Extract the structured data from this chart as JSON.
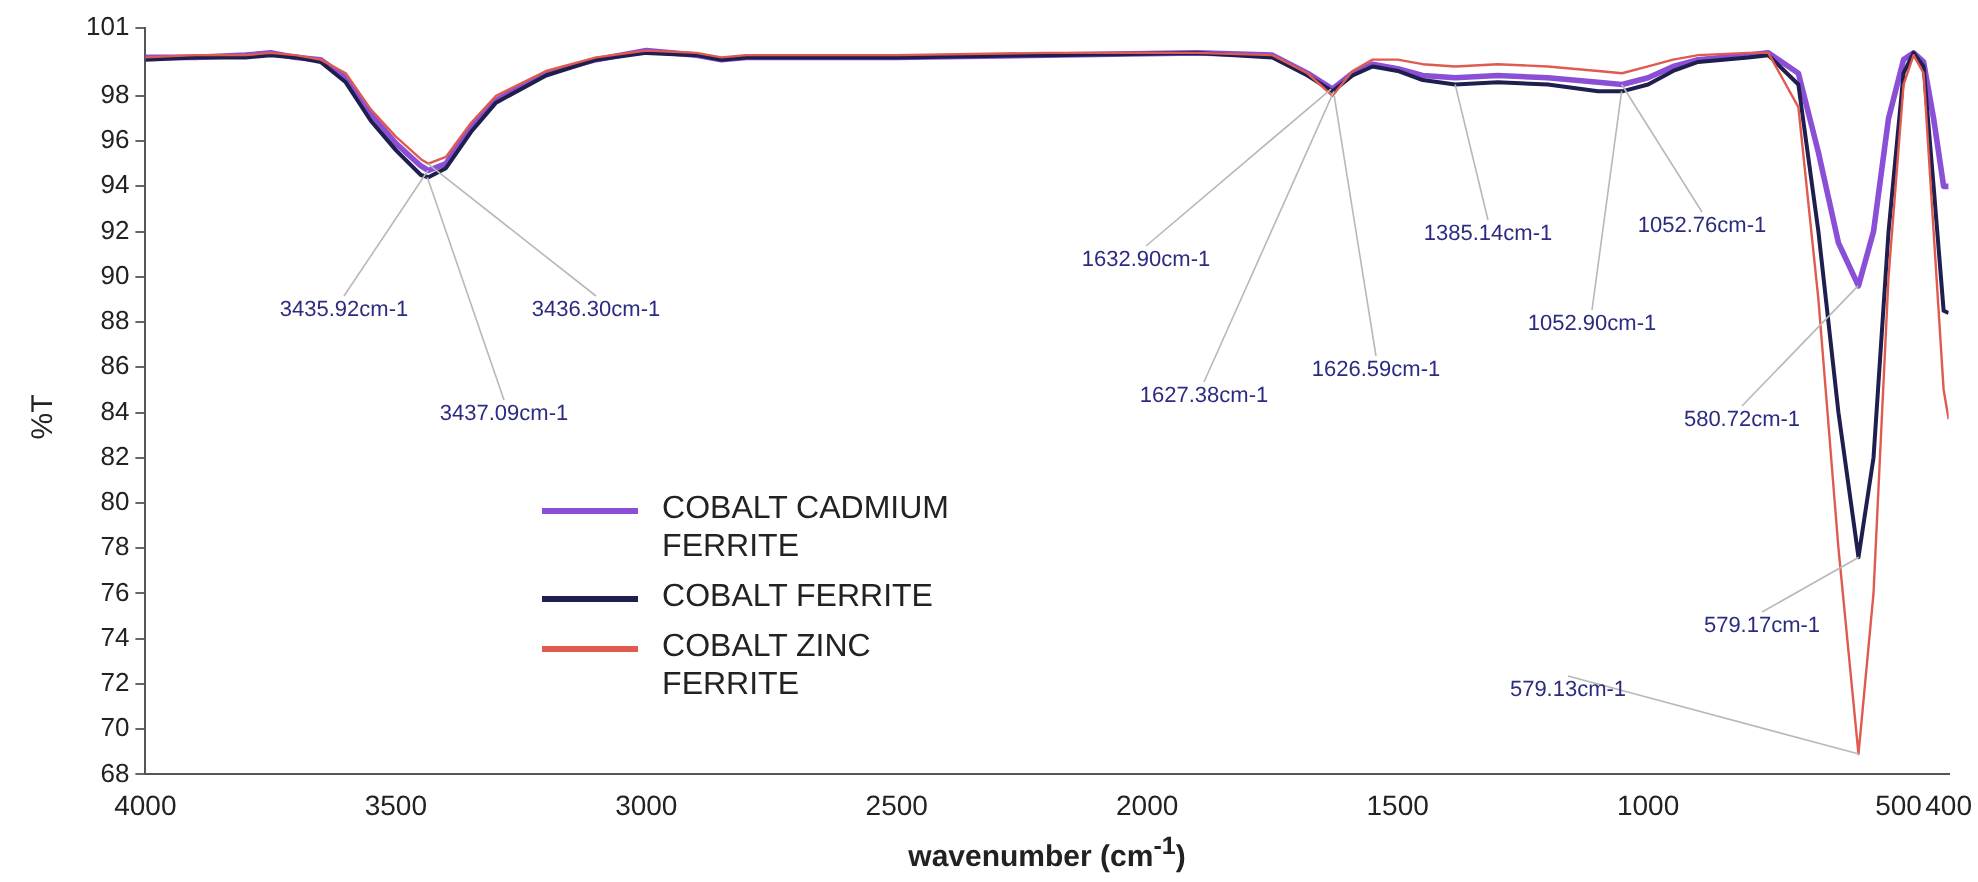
{
  "chart_data": {
    "type": "line",
    "xlabel": "wavenumber (cm$^{-1}$)",
    "ylabel": "%T",
    "x": [
      4000,
      3900,
      3800,
      3750,
      3700,
      3650,
      3600,
      3550,
      3500,
      3450,
      3435,
      3400,
      3350,
      3300,
      3200,
      3100,
      3000,
      2900,
      2850,
      2800,
      2500,
      2200,
      1900,
      1750,
      1680,
      1630,
      1590,
      1550,
      1500,
      1450,
      1385,
      1300,
      1200,
      1100,
      1052,
      1000,
      950,
      900,
      800,
      760,
      700,
      660,
      620,
      580,
      550,
      520,
      490,
      470,
      450,
      430,
      410,
      400
    ],
    "series": [
      {
        "name": "COBALT CADMIUM FERRITE",
        "color": "#8a4fd6",
        "values": [
          99.7,
          99.7,
          99.8,
          99.9,
          99.7,
          99.6,
          98.8,
          97.2,
          95.9,
          94.9,
          94.7,
          95.0,
          96.6,
          97.8,
          99.0,
          99.6,
          100.0,
          99.8,
          99.6,
          99.7,
          99.7,
          99.8,
          99.9,
          99.8,
          99.0,
          98.3,
          99.0,
          99.4,
          99.2,
          98.9,
          98.8,
          98.9,
          98.8,
          98.6,
          98.5,
          98.8,
          99.3,
          99.6,
          99.8,
          99.9,
          99.0,
          95.5,
          91.5,
          89.6,
          92.0,
          97.0,
          99.6,
          99.9,
          99.5,
          97.0,
          94.0,
          94.0
        ]
      },
      {
        "name": "COBALT FERRITE",
        "color": "#1f1f4f",
        "values": [
          99.6,
          99.7,
          99.7,
          99.8,
          99.7,
          99.5,
          98.6,
          96.9,
          95.6,
          94.5,
          94.4,
          94.8,
          96.4,
          97.7,
          98.9,
          99.6,
          99.9,
          99.8,
          99.6,
          99.7,
          99.7,
          99.8,
          99.9,
          99.7,
          98.9,
          98.2,
          98.9,
          99.3,
          99.1,
          98.7,
          98.5,
          98.6,
          98.5,
          98.2,
          98.2,
          98.5,
          99.1,
          99.5,
          99.7,
          99.8,
          98.5,
          92.0,
          84.0,
          77.6,
          82.0,
          92.0,
          99.0,
          99.9,
          99.3,
          94.0,
          88.5,
          88.4
        ]
      },
      {
        "name": "COBALT ZINC FERRITE",
        "color": "#e05a50",
        "values": [
          99.7,
          99.8,
          99.8,
          99.9,
          99.8,
          99.6,
          99.0,
          97.4,
          96.2,
          95.2,
          95.0,
          95.3,
          96.8,
          98.0,
          99.1,
          99.7,
          100.0,
          99.9,
          99.7,
          99.8,
          99.8,
          99.9,
          99.9,
          99.8,
          99.0,
          98.0,
          99.1,
          99.6,
          99.6,
          99.4,
          99.3,
          99.4,
          99.3,
          99.1,
          99.0,
          99.3,
          99.6,
          99.8,
          99.9,
          99.9,
          97.5,
          89.0,
          78.0,
          68.9,
          76.0,
          90.0,
          98.5,
          99.8,
          99.0,
          92.0,
          85.0,
          83.7
        ]
      }
    ],
    "xlim": [
      4000,
      400
    ],
    "xticks": [
      4000,
      3500,
      3000,
      2500,
      2000,
      1500,
      1000,
      500,
      400
    ],
    "ylim": [
      68,
      101
    ],
    "yticks": [
      68,
      70,
      72,
      74,
      76,
      78,
      80,
      82,
      84,
      86,
      88,
      90,
      92,
      94,
      96,
      98,
      101
    ],
    "grid": false,
    "legend": "bottom left",
    "marker": "none",
    "line_style": "solid",
    "annotations": [
      {
        "text": "3435.92cm-1",
        "x": 3435.92,
        "y": 94.7
      },
      {
        "text": "3436.30cm-1",
        "x": 3436.3,
        "y": 95.0
      },
      {
        "text": "3437.09cm-1",
        "x": 3437.09,
        "y": 94.4
      },
      {
        "text": "1632.90cm-1",
        "x": 1632.9,
        "y": 98.3
      },
      {
        "text": "1627.38cm-1",
        "x": 1627.38,
        "y": 98.2
      },
      {
        "text": "1626.59cm-1",
        "x": 1626.59,
        "y": 98.0
      },
      {
        "text": "1385.14cm-1",
        "x": 1385.14,
        "y": 98.5
      },
      {
        "text": "1052.90cm-1",
        "x": 1052.9,
        "y": 98.2
      },
      {
        "text": "1052.76cm-1",
        "x": 1052.76,
        "y": 98.5
      },
      {
        "text": "580.72cm-1",
        "x": 580.72,
        "y": 89.6
      },
      {
        "text": "579.17cm-1",
        "x": 579.17,
        "y": 77.6
      },
      {
        "text": "579.13cm-1",
        "x": 579.13,
        "y": 68.9
      }
    ]
  }
}
